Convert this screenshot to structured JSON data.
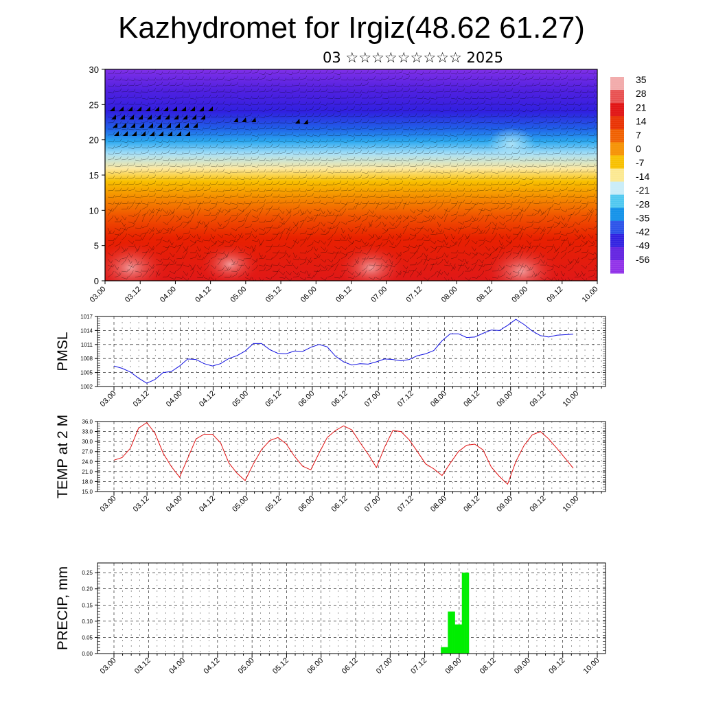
{
  "page": {
    "title": "Kazhydromet for Irgiz(48.62 61.27)",
    "subtitle": "03 ☆☆☆☆☆☆☆☆☆ 2025"
  },
  "chart_data": [
    {
      "type": "heatmap",
      "ylim": [
        0,
        30
      ],
      "yticks": [
        "0",
        "5",
        "10",
        "15",
        "20",
        "25",
        "30"
      ],
      "xticks": [
        "03.00",
        "03.12",
        "04.00",
        "04.12",
        "05.00",
        "05.12",
        "06.00",
        "06.12",
        "07.00",
        "07.12",
        "08.00",
        "08.12",
        "09.00",
        "09.12",
        "10.00"
      ],
      "colorbar": {
        "labels": [
          "35",
          "28",
          "21",
          "14",
          "7",
          "0",
          "-7",
          "-14",
          "-21",
          "-28",
          "-35",
          "-42",
          "-49",
          "-56"
        ],
        "colors": [
          "#f2a8a8",
          "#e85050",
          "#e01010",
          "#e83000",
          "#f06000",
          "#f59000",
          "#f8c000",
          "#fce890",
          "#c8ecf8",
          "#50c8f0",
          "#1090e8",
          "#2850e8",
          "#3020e0",
          "#6020e0",
          "#9030e8"
        ]
      },
      "grid": false
    },
    {
      "type": "line",
      "ylabel": "PMSL",
      "ylim": [
        1002,
        1017
      ],
      "yticks": [
        "1002",
        "1005",
        "1008",
        "1011",
        "1014",
        "1017"
      ],
      "xticks": [
        "03.00",
        "03.12",
        "04.00",
        "04.12",
        "05.00",
        "05.12",
        "06.00",
        "06.12",
        "07.00",
        "07.12",
        "08.00",
        "08.12",
        "09.00",
        "09.12",
        "10.00"
      ],
      "color": "#1010e0",
      "grid": true,
      "values": [
        1006.4,
        1005.9,
        1005.1,
        1003.8,
        1002.7,
        1003.5,
        1005.0,
        1005.2,
        1006.4,
        1007.9,
        1007.8,
        1006.9,
        1006.4,
        1006.9,
        1008.0,
        1008.6,
        1009.6,
        1011.2,
        1011.2,
        1009.9,
        1009.1,
        1009.0,
        1009.6,
        1009.5,
        1010.4,
        1011.0,
        1010.5,
        1008.5,
        1007.3,
        1006.6,
        1006.9,
        1006.8,
        1007.3,
        1007.9,
        1007.8,
        1007.5,
        1007.8,
        1008.6,
        1009.0,
        1009.7,
        1011.8,
        1013.3,
        1013.3,
        1012.5,
        1012.6,
        1013.4,
        1014.1,
        1014.0,
        1015.1,
        1016.4,
        1015.3,
        1013.9,
        1012.9,
        1012.6,
        1013.0,
        1013.1,
        1013.2
      ]
    },
    {
      "type": "line",
      "ylabel": "TEMP at 2 M",
      "ylim": [
        15,
        36
      ],
      "yticks": [
        "15.0",
        "18.0",
        "21.0",
        "24.0",
        "27.0",
        "30.0",
        "33.0",
        "36.0"
      ],
      "xticks": [
        "03.00",
        "03.12",
        "04.00",
        "04.12",
        "05.00",
        "05.12",
        "06.00",
        "06.12",
        "07.00",
        "07.12",
        "08.00",
        "08.12",
        "09.00",
        "09.12",
        "10.00"
      ],
      "color": "#e01010",
      "grid": true,
      "values": [
        24.4,
        25.2,
        28.0,
        34.0,
        35.7,
        32.5,
        26.5,
        22.5,
        19.3,
        25.0,
        30.8,
        32.2,
        32.2,
        29.6,
        23.6,
        20.5,
        18.3,
        23.3,
        27.6,
        30.3,
        31.2,
        29.3,
        25.6,
        22.6,
        21.5,
        26.5,
        31.2,
        33.3,
        34.7,
        33.5,
        29.7,
        26.2,
        22.2,
        28.3,
        33.3,
        33.0,
        30.5,
        27.0,
        23.3,
        21.8,
        19.8,
        23.5,
        27.0,
        28.9,
        29.2,
        27.5,
        22.4,
        19.5,
        17.2,
        24.0,
        28.8,
        32.0,
        33.0,
        30.8,
        28.0,
        25.0,
        22.0
      ]
    },
    {
      "type": "bar",
      "ylabel": "PRECIP, mm",
      "ylim": [
        0,
        0.28
      ],
      "yticks": [
        "0.00",
        "0.05",
        "0.10",
        "0.15",
        "0.20",
        "0.25"
      ],
      "xticks": [
        "03.00",
        "03.12",
        "04.00",
        "04.12",
        "05.00",
        "05.12",
        "06.00",
        "06.12",
        "07.00",
        "07.12",
        "08.00",
        "08.12",
        "09.00",
        "09.12",
        "10.00"
      ],
      "color": "#00ee00",
      "grid": true,
      "values": [
        0,
        0,
        0,
        0,
        0,
        0,
        0,
        0,
        0,
        0,
        0,
        0,
        0,
        0,
        0,
        0,
        0,
        0,
        0,
        0,
        0,
        0,
        0,
        0,
        0,
        0,
        0,
        0,
        0,
        0,
        0,
        0,
        0,
        0,
        0,
        0,
        0,
        0,
        0,
        0,
        0,
        0,
        0,
        0,
        0,
        0,
        0,
        0,
        0,
        0,
        0,
        0,
        0,
        0,
        0,
        0,
        0,
        0,
        0,
        0,
        0,
        0,
        0,
        0,
        0,
        0,
        0,
        0,
        0,
        0,
        0,
        0,
        0,
        0,
        0,
        0,
        0,
        0,
        0,
        0,
        0,
        0,
        0,
        0,
        0,
        0,
        0,
        0,
        0,
        0,
        0,
        0,
        0,
        0,
        0,
        0,
        0,
        0,
        0,
        0,
        0,
        0,
        0,
        0,
        0,
        0,
        0,
        0,
        0,
        0,
        0,
        0,
        0,
        0,
        0,
        0,
        0,
        0,
        0,
        0,
        0,
        0,
        0,
        0,
        0,
        0,
        0,
        0,
        0,
        0,
        0,
        0,
        0,
        0,
        0,
        0,
        0,
        0,
        0,
        0,
        0.02,
        0.02,
        0.02,
        0.13,
        0.13,
        0.13,
        0.09,
        0.09,
        0.09,
        0.25,
        0.25,
        0.25,
        0,
        0,
        0,
        0,
        0,
        0,
        0,
        0,
        0,
        0,
        0,
        0,
        0,
        0,
        0,
        0,
        0,
        0,
        0,
        0,
        0,
        0,
        0,
        0,
        0,
        0,
        0,
        0,
        0,
        0,
        0,
        0,
        0,
        0,
        0,
        0,
        0,
        0,
        0,
        0,
        0,
        0,
        0,
        0,
        0,
        0,
        0,
        0,
        0,
        0,
        0,
        0,
        0,
        0,
        0
      ]
    }
  ]
}
